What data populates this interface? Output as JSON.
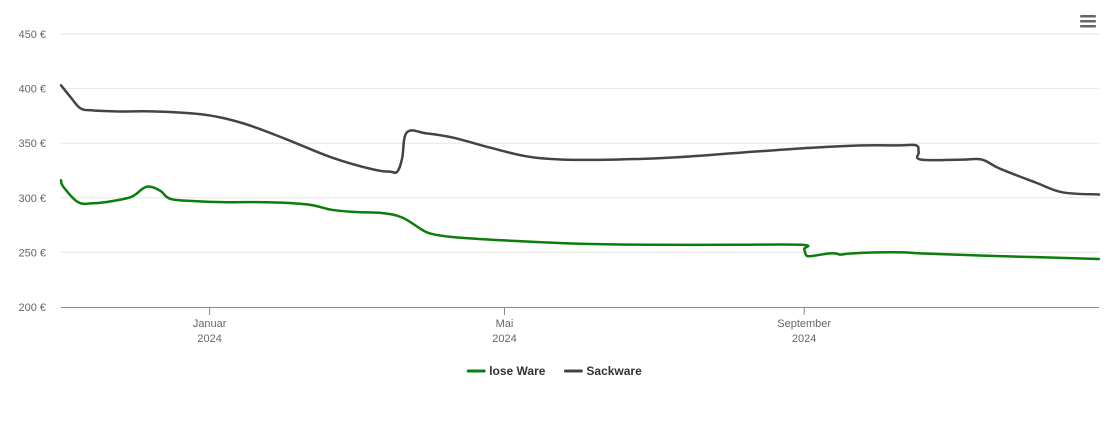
{
  "chart_data": {
    "type": "line",
    "title": "",
    "xlabel": "",
    "ylabel": "",
    "ylim": [
      200,
      450
    ],
    "y_ticks": [
      200,
      250,
      300,
      350,
      400,
      450
    ],
    "y_tick_format": "{v} €",
    "x_range": [
      "2023-11-01",
      "2024-12-31"
    ],
    "x_ticks": [
      {
        "date": "2024-01-01",
        "label": "Januar",
        "year": "2024"
      },
      {
        "date": "2024-05-01",
        "label": "Mai",
        "year": "2024"
      },
      {
        "date": "2024-09-01",
        "label": "September",
        "year": "2024"
      }
    ],
    "grid": "horizontal",
    "legend_position": "bottom-center",
    "series": [
      {
        "name": "lose Ware",
        "color": "#0a7d0a",
        "points": [
          [
            "2023-11-01",
            316
          ],
          [
            "2023-11-02",
            310
          ],
          [
            "2023-11-08",
            296
          ],
          [
            "2023-11-14",
            295
          ],
          [
            "2023-11-22",
            297
          ],
          [
            "2023-11-30",
            301
          ],
          [
            "2023-12-05",
            309
          ],
          [
            "2023-12-08",
            310
          ],
          [
            "2023-12-12",
            306
          ],
          [
            "2023-12-16",
            299
          ],
          [
            "2023-12-26",
            297
          ],
          [
            "2024-01-08",
            296
          ],
          [
            "2024-01-25",
            296
          ],
          [
            "2024-02-10",
            294
          ],
          [
            "2024-02-20",
            289
          ],
          [
            "2024-03-01",
            287
          ],
          [
            "2024-03-12",
            286
          ],
          [
            "2024-03-20",
            282
          ],
          [
            "2024-03-28",
            271
          ],
          [
            "2024-04-01",
            267
          ],
          [
            "2024-04-10",
            264
          ],
          [
            "2024-05-01",
            261
          ],
          [
            "2024-06-01",
            258
          ],
          [
            "2024-07-01",
            257
          ],
          [
            "2024-08-01",
            257
          ],
          [
            "2024-08-31",
            257
          ],
          [
            "2024-09-01",
            253
          ],
          [
            "2024-09-02",
            247
          ],
          [
            "2024-09-05",
            247
          ],
          [
            "2024-09-11",
            249
          ],
          [
            "2024-09-14",
            249
          ],
          [
            "2024-09-16",
            248
          ],
          [
            "2024-09-20",
            249
          ],
          [
            "2024-10-01",
            250
          ],
          [
            "2024-10-12",
            250
          ],
          [
            "2024-10-20",
            249
          ],
          [
            "2024-11-15",
            247
          ],
          [
            "2024-12-31",
            244
          ]
        ]
      },
      {
        "name": "Sackware",
        "color": "#444444",
        "points": [
          [
            "2023-11-01",
            403
          ],
          [
            "2023-11-05",
            392
          ],
          [
            "2023-11-09",
            382
          ],
          [
            "2023-11-14",
            380
          ],
          [
            "2023-11-25",
            379
          ],
          [
            "2023-12-10",
            379
          ],
          [
            "2023-12-30",
            376
          ],
          [
            "2024-01-15",
            368
          ],
          [
            "2024-02-01",
            354
          ],
          [
            "2024-02-20",
            337
          ],
          [
            "2024-03-08",
            326
          ],
          [
            "2024-03-15",
            324
          ],
          [
            "2024-03-18",
            324
          ],
          [
            "2024-03-20",
            336
          ],
          [
            "2024-03-22",
            360
          ],
          [
            "2024-03-30",
            359
          ],
          [
            "2024-04-10",
            355
          ],
          [
            "2024-04-25",
            346
          ],
          [
            "2024-05-10",
            338
          ],
          [
            "2024-05-25",
            335
          ],
          [
            "2024-06-15",
            335
          ],
          [
            "2024-07-10",
            337
          ],
          [
            "2024-08-10",
            342
          ],
          [
            "2024-09-05",
            346
          ],
          [
            "2024-09-25",
            348
          ],
          [
            "2024-10-10",
            348
          ],
          [
            "2024-10-17",
            348
          ],
          [
            "2024-10-18",
            342
          ],
          [
            "2024-10-19",
            335
          ],
          [
            "2024-11-05",
            335
          ],
          [
            "2024-11-13",
            335
          ],
          [
            "2024-11-20",
            327
          ],
          [
            "2024-12-05",
            314
          ],
          [
            "2024-12-16",
            305
          ],
          [
            "2024-12-31",
            303
          ]
        ]
      }
    ]
  },
  "menu": {
    "icon": "hamburger-menu-icon"
  }
}
